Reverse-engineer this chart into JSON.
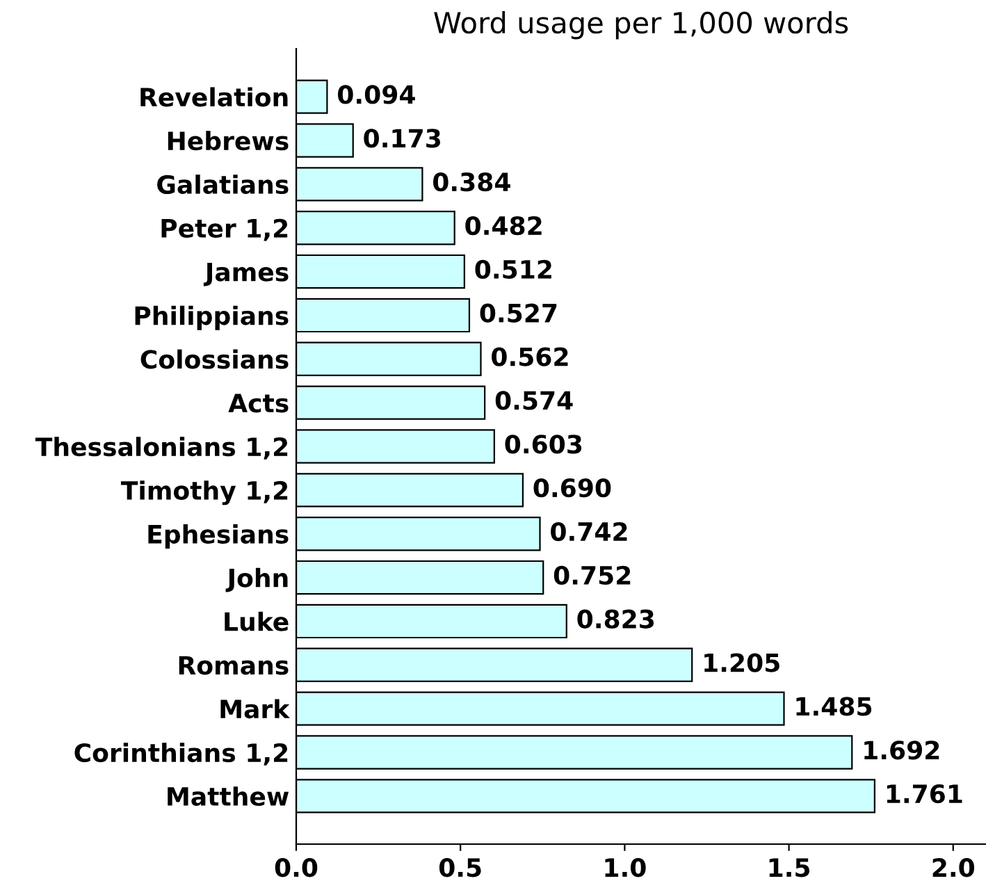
{
  "chart_data": {
    "type": "bar",
    "orientation": "horizontal",
    "title": "Word usage per 1,000 words",
    "categories": [
      "Revelation",
      "Hebrews",
      "Galatians",
      "Peter 1,2",
      "James",
      "Philippians",
      "Colossians",
      "Acts",
      "Thessalonians 1,2",
      "Timothy 1,2",
      "Ephesians",
      "John",
      "Luke",
      "Romans",
      "Mark",
      "Corinthians 1,2",
      "Matthew"
    ],
    "values": [
      0.094,
      0.173,
      0.384,
      0.482,
      0.512,
      0.527,
      0.562,
      0.574,
      0.603,
      0.69,
      0.742,
      0.752,
      0.823,
      1.205,
      1.485,
      1.692,
      1.761
    ],
    "value_labels": [
      "0.094",
      "0.173",
      "0.384",
      "0.482",
      "0.512",
      "0.527",
      "0.562",
      "0.574",
      "0.603",
      "0.690",
      "0.742",
      "0.752",
      "0.823",
      "1.205",
      "1.485",
      "1.692",
      "1.761"
    ],
    "color": "#ccffff",
    "xlim": [
      0,
      2.1
    ],
    "xticks": [
      {
        "value": 0,
        "label": "0.0"
      },
      0.5,
      {
        "value": 1,
        "label": "1.0"
      },
      1.5,
      {
        "value": 2,
        "label": "2.0"
      }
    ],
    "grid": false,
    "legend": false
  }
}
